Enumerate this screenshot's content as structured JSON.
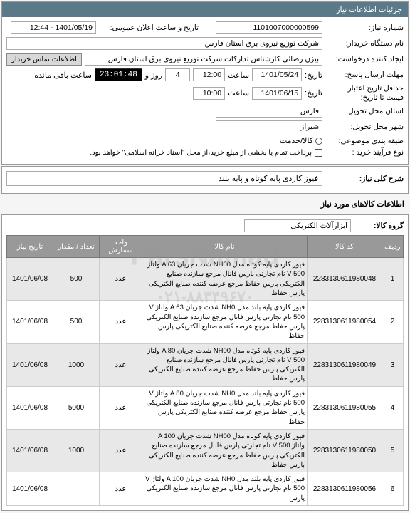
{
  "watermark_text": "ParsNamad",
  "watermark_phone": "۰۲۱-۸۸۳۴۹۶۷۰",
  "panel": {
    "title": "جزئیات اطلاعات نیاز"
  },
  "fields": {
    "need_number_label": "شماره نیاز:",
    "need_number": "1101007000000599",
    "announce_date_label": "تاریخ و ساعت اعلان عمومی:",
    "announce_date": "1401/05/19 - 12:44",
    "buyer_label": "نام دستگاه خریدار:",
    "buyer": "شرکت توزیع نیروی برق استان فارس",
    "creator_label": "ایجاد کننده درخواست:",
    "creator": "بیژن رضائی کارشناس تدارکات شرکت توزیع نیروی برق استان فارس",
    "contact_btn": "اطلاعات تماس خریدار",
    "deadline_label": "مهلت ارسال پاسخ:",
    "deadline_date": "1401/05/24",
    "time_label": "ساعت",
    "deadline_time": "12:00",
    "remain_days": "4",
    "day_and": "روز و",
    "timer": "23:01:48",
    "remain_label": "ساعت باقی مانده",
    "date_label": "تاریخ:",
    "valid_label": "حداقل تاریخ اعتبار",
    "valid_label2": "قیمت تا تاریخ:",
    "valid_date": "1401/06/15",
    "valid_time": "10:00",
    "province_label": "استان محل تحویل:",
    "province": "فارس",
    "city_label": "شهر محل تحویل:",
    "city": "شیراز",
    "category_label": "طبقه بندی موضوعی:",
    "cash_label": "کالا/خدمت",
    "process_label": "نوع فرآیند خرید :",
    "process_note": "پرداخت تمام یا بخشی از مبلغ خرید،از محل \"اسناد خزانه اسلامی\" خواهد بود."
  },
  "need_desc": {
    "label": "شرح کلی نیاز:",
    "value": "فیوز کاردی پایه کوتاه و پایه بلند"
  },
  "goods_section": "اطلاعات کالاهای مورد نیاز",
  "group": {
    "label": "گروه کالا:",
    "value": "ابزارآلات الکتریکی"
  },
  "table": {
    "headers": [
      "ردیف",
      "کد کالا",
      "نام کالا",
      "واحد شمارش",
      "تعداد / مقدار",
      "تاریخ نیاز"
    ],
    "rows": [
      {
        "idx": "1",
        "code": "2283130611980048",
        "name": "فیوز کاردی پایه کوتاه مدل NH00 شدت جریان A 63 ولتاژ V 500 نام تجارتی پارس فانال مرجع سازنده صنایع الکتریکی پارس حفاظ مرجع عرضه کننده صنایع الکتریکی پارس حفاظ",
        "unit": "عدد",
        "qty": "500",
        "date": "1401/06/08"
      },
      {
        "idx": "2",
        "code": "2283130611980054",
        "name": "فیوز کاردی پایه بلند مدل NH0 شدت جریان A 63 ولتاژ V 500 نام تجارتی پارس فانال مرجع سازنده صنایع الکتریکی پارس حفاظ مرجع عرضه کننده صنایع الکتریکی پارس حفاظ",
        "unit": "عدد",
        "qty": "500",
        "date": "1401/06/08"
      },
      {
        "idx": "3",
        "code": "2283130611980049",
        "name": "فیوز کاردی پایه کوتاه مدل NH00 شدت جریان A 80 ولتاژ V 500 نام تجارتی پارس فانال مرجع سازنده صنایع الکتریکی پارس حفاظ مرجع عرضه کننده صنایع الکتریکی پارس حفاظ",
        "unit": "عدد",
        "qty": "1000",
        "date": "1401/06/08"
      },
      {
        "idx": "4",
        "code": "2283130611980055",
        "name": "فیوز کاردی پایه بلند مدل NH0 شدت جریان A 80 ولتاژ V 500 نام تجارتی پارس فانال مرجع سازنده صنایع الکتریکی پارس حفاظ مرجع عرضه کننده صنایع الکتریکی پارس حفاظ",
        "unit": "عدد",
        "qty": "5000",
        "date": "1401/06/08"
      },
      {
        "idx": "5",
        "code": "2283130611980050",
        "name": "فیوز کاردی پایه کوتاه مدل NH00 شدت جریان A 100 ولتاژ V 500 نام تجارتی پارس فانال مرجع سازنده صنایع الکتریکی پارس حفاظ مرجع عرضه کننده صنایع الکتریکی پارس حفاظ",
        "unit": "عدد",
        "qty": "1000",
        "date": "1401/06/08"
      },
      {
        "idx": "6",
        "code": "2283130611980056",
        "name": "فیوز کاردی پایه بلند مدل NH0 شدت جریان A 100 ولتاژ V 500 نام تجارتی پارس فانال مرجع سازنده صنایع الکتریکی پارس",
        "unit": "عدد",
        "qty": "",
        "date": "1401/06/08"
      }
    ]
  }
}
